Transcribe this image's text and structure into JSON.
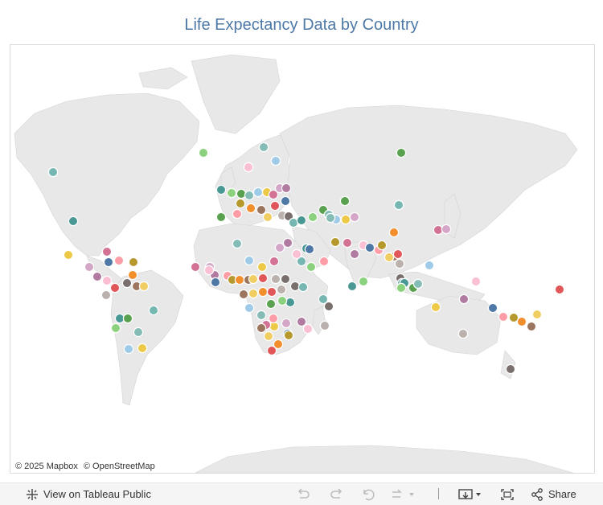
{
  "title": "Life Expectancy Data by Country",
  "attribution": {
    "mapbox": "© 2025 Mapbox",
    "osm": "© OpenStreetMap"
  },
  "toolbar": {
    "view_label": "View on Tableau Public",
    "share_label": "Share",
    "icons": [
      "tableau-logo-icon",
      "undo-icon",
      "redo-icon",
      "revert-icon",
      "refresh-icon",
      "download-icon",
      "fullscreen-icon",
      "share-icon"
    ]
  },
  "colors": {
    "title": "#4e79a7",
    "land": "#e8e8e8",
    "water": "#ffffff",
    "palette": [
      "#4e79a7",
      "#f28e2b",
      "#e15759",
      "#76b7b2",
      "#59a14f",
      "#edc948",
      "#b07aa1",
      "#ff9da7",
      "#9c755f",
      "#bab0ac",
      "#499894",
      "#86bcb6",
      "#d37295",
      "#fabfd2",
      "#b6992d",
      "#f1ce63",
      "#79706e",
      "#8cd17d",
      "#a0cbe8",
      "#d4a6c8"
    ]
  }
}
